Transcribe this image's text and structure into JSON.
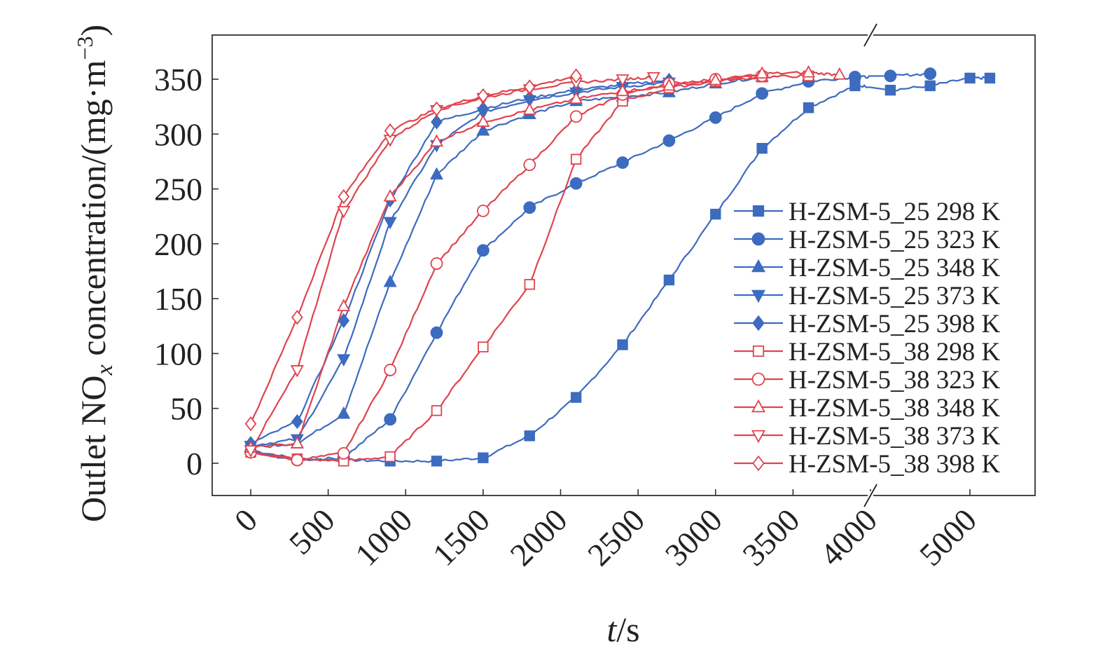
{
  "chart_data": {
    "type": "line",
    "title": "",
    "xlabel": {
      "italic": "t",
      "rest": "/s"
    },
    "ylabel": "Outlet NOx concentration/(mg·m−3)",
    "ylabel_parts": [
      "Outlet NO",
      "x",
      " concentration/(mg·m",
      "−3",
      ")"
    ],
    "xlim": [
      -250,
      5200
    ],
    "ylim": [
      -30,
      390
    ],
    "x_axis_break": [
      4000,
      4500
    ],
    "x_ticks": [
      0,
      500,
      1000,
      1500,
      2000,
      2500,
      3000,
      3500,
      4000,
      5000
    ],
    "x_tick_labels": [
      "0",
      "500",
      "1000",
      "1500",
      "2000",
      "2500",
      "3000",
      "3500",
      "4000",
      "5000"
    ],
    "y_ticks": [
      0,
      50,
      100,
      150,
      200,
      250,
      300,
      350
    ],
    "y_tick_labels": [
      "0",
      "50",
      "100",
      "150",
      "200",
      "250",
      "300",
      "350"
    ],
    "grid": false,
    "legend_position": "right",
    "series": [
      {
        "name": "H-ZSM-5_25 298 K",
        "color": "#3d6bbf",
        "marker": "square",
        "filled": true,
        "x": [
          0,
          300,
          600,
          900,
          1200,
          1500,
          1800,
          2100,
          2400,
          2700,
          3000,
          3300,
          3600,
          3900,
          4600,
          4800,
          5000,
          5100
        ],
        "y": [
          12,
          4,
          3,
          2,
          2,
          5,
          25,
          60,
          108,
          167,
          227,
          287,
          324,
          344,
          340,
          344,
          351,
          351
        ]
      },
      {
        "name": "H-ZSM-5_25 323 K",
        "color": "#3d6bbf",
        "marker": "circle",
        "filled": true,
        "x": [
          0,
          300,
          600,
          900,
          1200,
          1500,
          1800,
          2100,
          2400,
          2700,
          3000,
          3300,
          3600,
          3900,
          4600,
          4800
        ],
        "y": [
          10,
          3,
          5,
          40,
          119,
          194,
          233,
          255,
          274,
          294,
          315,
          337,
          348,
          352,
          353,
          355
        ]
      },
      {
        "name": "H-ZSM-5_25 348 K",
        "color": "#3d6bbf",
        "marker": "triangle-up",
        "filled": true,
        "x": [
          0,
          300,
          600,
          900,
          1200,
          1500,
          1800,
          2100,
          2400,
          2700,
          3000,
          3300
        ],
        "y": [
          15,
          18,
          45,
          165,
          263,
          303,
          318,
          330,
          334,
          338,
          346,
          352
        ]
      },
      {
        "name": "H-ZSM-5_25 373 K",
        "color": "#3d6bbf",
        "marker": "triangle-down",
        "filled": true,
        "x": [
          0,
          300,
          600,
          900,
          1200,
          1500,
          1800,
          2100,
          2400,
          2700
        ],
        "y": [
          16,
          22,
          95,
          220,
          290,
          320,
          331,
          338,
          343,
          347
        ]
      },
      {
        "name": "H-ZSM-5_25 398 K",
        "color": "#3d6bbf",
        "marker": "diamond",
        "filled": true,
        "x": [
          0,
          300,
          600,
          900,
          1200,
          1500,
          1800,
          2100,
          2400,
          2700
        ],
        "y": [
          18,
          38,
          130,
          240,
          311,
          323,
          333,
          340,
          345,
          349
        ]
      },
      {
        "name": "H-ZSM-5_38 298 K",
        "color": "#e0434e",
        "marker": "square",
        "filled": false,
        "x": [
          0,
          300,
          600,
          900,
          1200,
          1500,
          1800,
          2100,
          2400,
          2700,
          3000,
          3300,
          3600
        ],
        "y": [
          10,
          4,
          2,
          6,
          48,
          106,
          163,
          277,
          330,
          342,
          348,
          352,
          353
        ]
      },
      {
        "name": "H-ZSM-5_38 323 K",
        "color": "#e0434e",
        "marker": "circle",
        "filled": false,
        "x": [
          0,
          300,
          600,
          900,
          1200,
          1500,
          1800,
          2100,
          2400,
          2700,
          3000,
          3300
        ],
        "y": [
          10,
          3,
          9,
          85,
          182,
          230,
          272,
          316,
          336,
          346,
          350,
          353
        ]
      },
      {
        "name": "H-ZSM-5_38 348 K",
        "color": "#e0434e",
        "marker": "triangle-up",
        "filled": false,
        "x": [
          0,
          300,
          600,
          900,
          1200,
          1500,
          1800,
          2100,
          2400,
          2700,
          3000,
          3300,
          3600,
          3800
        ],
        "y": [
          14,
          18,
          143,
          243,
          293,
          311,
          322,
          332,
          339,
          344,
          349,
          355,
          356,
          354
        ]
      },
      {
        "name": "H-ZSM-5_38 373 K",
        "color": "#e0434e",
        "marker": "triangle-down",
        "filled": false,
        "x": [
          0,
          300,
          600,
          900,
          1200,
          1500,
          1800,
          2100,
          2400,
          2600
        ],
        "y": [
          12,
          85,
          230,
          295,
          322,
          333,
          341,
          347,
          350,
          352
        ]
      },
      {
        "name": "H-ZSM-5_38 398 K",
        "color": "#e0434e",
        "marker": "diamond",
        "filled": false,
        "x": [
          0,
          300,
          600,
          900,
          1200,
          1500,
          1800,
          2100
        ],
        "y": [
          36,
          133,
          243,
          303,
          323,
          335,
          343,
          353
        ]
      }
    ]
  }
}
